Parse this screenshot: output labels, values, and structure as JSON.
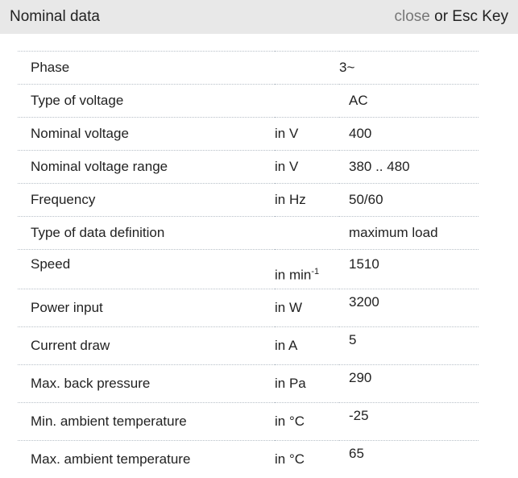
{
  "header": {
    "title": "Nominal data",
    "close_label": "close",
    "suffix": " or Esc Key"
  },
  "rows": [
    {
      "label": "Phase",
      "unit": "",
      "value": "3~"
    },
    {
      "label": "Type of voltage",
      "unit": "",
      "value": "AC"
    },
    {
      "label": "Nominal voltage",
      "unit": "in V",
      "value": "400"
    },
    {
      "label": "Nominal voltage range",
      "unit": "in V",
      "value": "380 .. 480"
    },
    {
      "label": "Frequency",
      "unit": "in Hz",
      "value": "50/60"
    },
    {
      "label": "Type of data definition",
      "unit": "",
      "value": "maximum load"
    },
    {
      "label": "Speed",
      "unit": "in min",
      "unit_sup": "-1",
      "value": "1510"
    },
    {
      "label": "Power input",
      "unit": "in W",
      "value": "3200"
    },
    {
      "label": "Current draw",
      "unit": "in A",
      "value": "5"
    },
    {
      "label": "Max. back pressure",
      "unit": "in Pa",
      "value": "290"
    },
    {
      "label": "Min. ambient temperature",
      "unit": "in °C",
      "value": "-25"
    },
    {
      "label": "Max. ambient temperature",
      "unit": "in °C",
      "value": "65"
    }
  ]
}
